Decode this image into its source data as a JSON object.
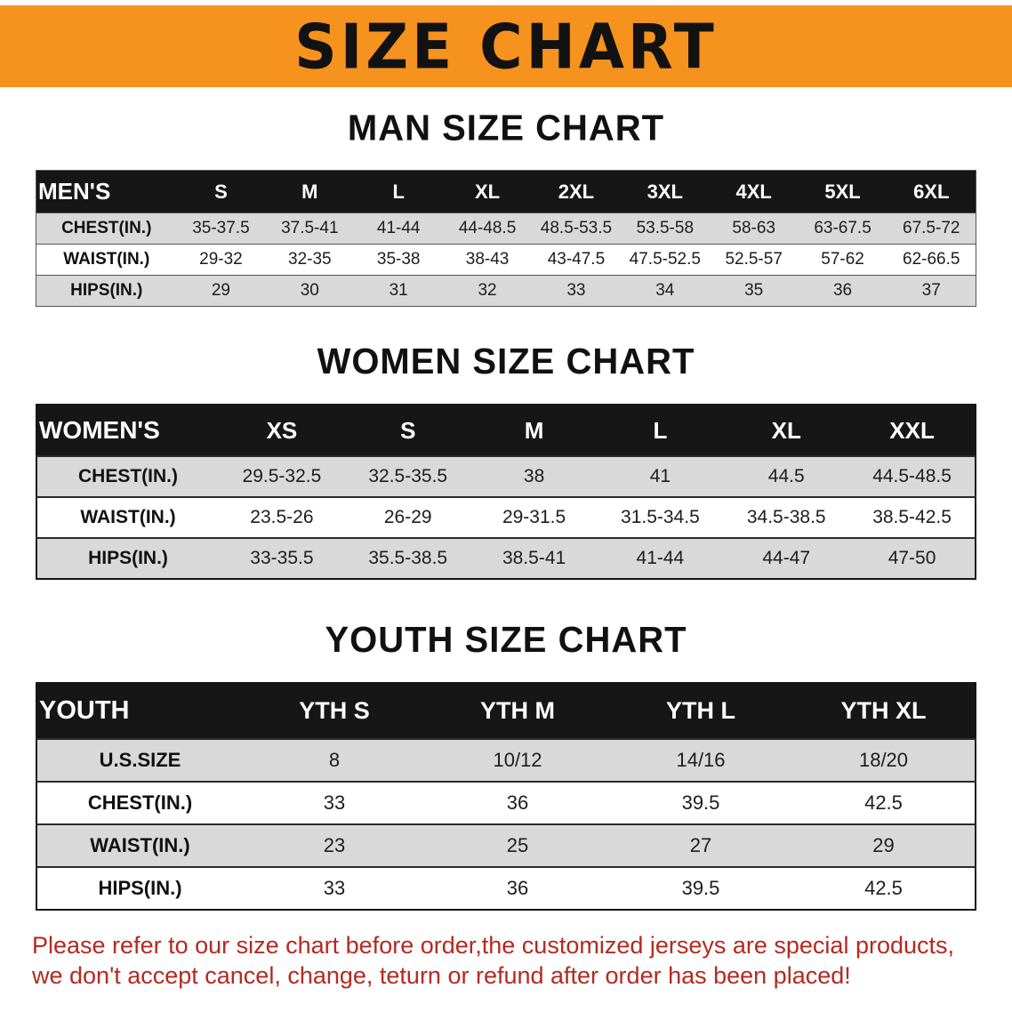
{
  "banner": {
    "title": "SIZE CHART"
  },
  "colors": {
    "banner_bg": "#F6921E",
    "table_header_bg": "#161616",
    "row_stripe": "#D9D9D9",
    "disclaimer_text": "#B32A21"
  },
  "sections": [
    {
      "title": "MAN SIZE CHART",
      "header": [
        "MEN'S",
        "S",
        "M",
        "L",
        "XL",
        "2XL",
        "3XL",
        "4XL",
        "5XL",
        "6XL"
      ],
      "rows": [
        [
          "CHEST(IN.)",
          "35-37.5",
          "37.5-41",
          "41-44",
          "44-48.5",
          "48.5-53.5",
          "53.5-58",
          "58-63",
          "63-67.5",
          "67.5-72"
        ],
        [
          "WAIST(IN.)",
          "29-32",
          "32-35",
          "35-38",
          "38-43",
          "43-47.5",
          "47.5-52.5",
          "52.5-57",
          "57-62",
          "62-66.5"
        ],
        [
          "HIPS(IN.)",
          "29",
          "30",
          "31",
          "32",
          "33",
          "34",
          "35",
          "36",
          "37"
        ]
      ]
    },
    {
      "title": "WOMEN SIZE CHART",
      "header": [
        "WOMEN'S",
        "XS",
        "S",
        "M",
        "L",
        "XL",
        "XXL"
      ],
      "rows": [
        [
          "CHEST(IN.)",
          "29.5-32.5",
          "32.5-35.5",
          "38",
          "41",
          "44.5",
          "44.5-48.5"
        ],
        [
          "WAIST(IN.)",
          "23.5-26",
          "26-29",
          "29-31.5",
          "31.5-34.5",
          "34.5-38.5",
          "38.5-42.5"
        ],
        [
          "HIPS(IN.)",
          "33-35.5",
          "35.5-38.5",
          "38.5-41",
          "41-44",
          "44-47",
          "47-50"
        ]
      ]
    },
    {
      "title": "YOUTH SIZE CHART",
      "header": [
        "YOUTH",
        "YTH S",
        "YTH M",
        "YTH L",
        "YTH XL"
      ],
      "rows": [
        [
          "U.S.SIZE",
          "8",
          "10/12",
          "14/16",
          "18/20"
        ],
        [
          "CHEST(IN.)",
          "33",
          "36",
          "39.5",
          "42.5"
        ],
        [
          "WAIST(IN.)",
          "23",
          "25",
          "27",
          "29"
        ],
        [
          "HIPS(IN.)",
          "33",
          "36",
          "39.5",
          "42.5"
        ]
      ]
    }
  ],
  "disclaimer": {
    "line1": "Please refer to our size chart before order,the customized jerseys are special products,",
    "line2": "we don't accept cancel, change, teturn or refund after order has been placed!"
  }
}
